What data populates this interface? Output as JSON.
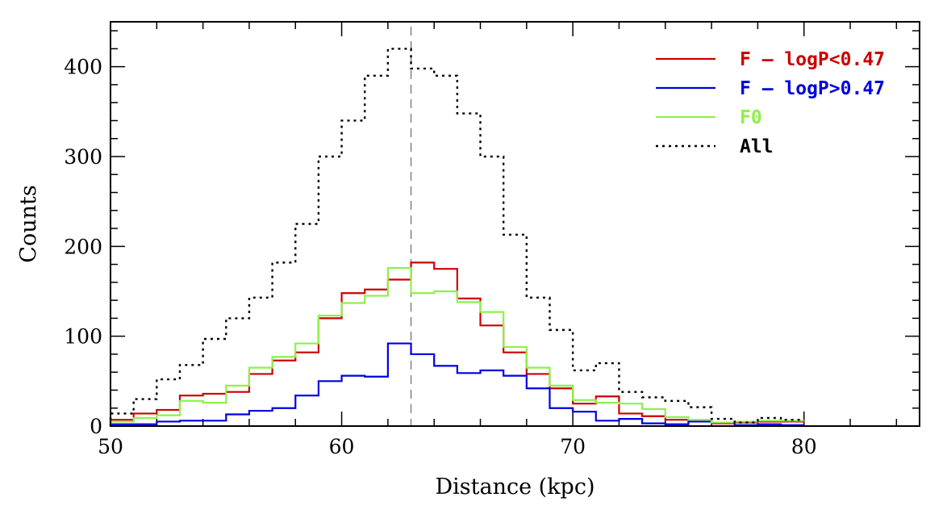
{
  "chart_data": {
    "type": "histogram",
    "title": "",
    "xlabel": "Distance (kpc)",
    "ylabel": "Counts",
    "xlim": [
      50,
      85
    ],
    "ylim": [
      0,
      450
    ],
    "x_ticks": [
      50,
      60,
      70,
      80
    ],
    "y_ticks": [
      0,
      100,
      200,
      300,
      400
    ],
    "bin_width": 1,
    "bin_edges": [
      50,
      51,
      52,
      53,
      54,
      55,
      56,
      57,
      58,
      59,
      60,
      61,
      62,
      63,
      64,
      65,
      66,
      67,
      68,
      69,
      70,
      71,
      72,
      73,
      74,
      75,
      76,
      77,
      78,
      79,
      80
    ],
    "reference_line": {
      "x": 63,
      "style": "dashed",
      "color": "#808080"
    },
    "legend_position": "top-right",
    "series": [
      {
        "name": "F – logP<0.47",
        "color": "#cc0000",
        "style": "solid",
        "values": [
          7,
          14,
          18,
          34,
          36,
          38,
          58,
          73,
          82,
          120,
          148,
          152,
          163,
          182,
          175,
          142,
          112,
          82,
          58,
          42,
          25,
          33,
          14,
          11,
          7,
          5,
          3,
          4,
          5,
          5
        ]
      },
      {
        "name": "F – logP>0.47",
        "color": "#0000e0",
        "style": "solid",
        "values": [
          2,
          2,
          5,
          6,
          6,
          13,
          17,
          20,
          34,
          50,
          56,
          55,
          92,
          80,
          67,
          59,
          62,
          56,
          42,
          20,
          16,
          6,
          8,
          3,
          2,
          5,
          4,
          1,
          2,
          1
        ]
      },
      {
        "name": "F0",
        "color": "#8ef04a",
        "style": "solid",
        "values": [
          5,
          9,
          12,
          28,
          26,
          45,
          65,
          77,
          92,
          123,
          137,
          145,
          176,
          148,
          150,
          138,
          127,
          88,
          65,
          45,
          29,
          26,
          25,
          19,
          10,
          7,
          4,
          5,
          6,
          6
        ]
      },
      {
        "name": "All",
        "color": "#000000",
        "style": "dotted",
        "values": [
          14,
          30,
          52,
          68,
          97,
          120,
          143,
          182,
          225,
          300,
          340,
          390,
          420,
          398,
          390,
          348,
          300,
          213,
          143,
          107,
          62,
          70,
          38,
          32,
          28,
          21,
          8,
          4,
          9,
          7
        ]
      }
    ]
  }
}
